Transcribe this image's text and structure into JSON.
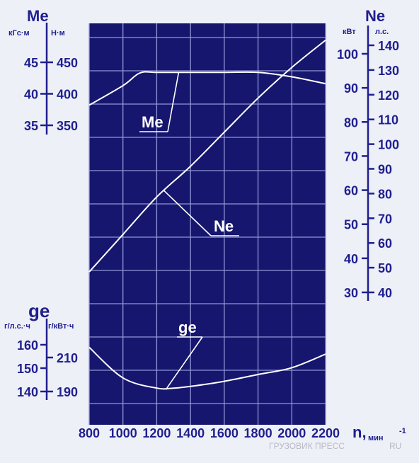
{
  "chart_data": {
    "type": "line",
    "x": {
      "label": "n,",
      "unit": "мин",
      "unit_superscript": "-1",
      "range": [
        800,
        2200
      ],
      "ticks": [
        800,
        1000,
        1200,
        1400,
        1600,
        1800,
        2000,
        2200
      ]
    },
    "axes": {
      "me": {
        "title": "Me",
        "units": [
          "кГс·м",
          "Н·м"
        ],
        "ticks_primary": [
          45,
          40,
          35
        ],
        "ticks_secondary": [
          450,
          400,
          350
        ]
      },
      "ne": {
        "title": "Ne",
        "units": [
          "кВт",
          "л.с."
        ],
        "ticks_primary": [
          100,
          90,
          80,
          70,
          60,
          50,
          40,
          30
        ],
        "ticks_secondary": [
          140,
          130,
          120,
          110,
          100,
          90,
          80,
          70,
          60,
          50,
          40
        ]
      },
      "ge": {
        "title": "ge",
        "units": [
          "г/л.с.·ч",
          "г/кВт·ч"
        ],
        "ticks_primary": [
          160,
          150,
          140
        ],
        "ticks_secondary": [
          210,
          190
        ]
      }
    },
    "series": [
      {
        "name": "Me",
        "axis": "me",
        "unit": "Н·м",
        "x": [
          800,
          1000,
          1100,
          1200,
          1400,
          1600,
          1800,
          2000,
          2200
        ],
        "values": [
          382,
          413,
          433,
          434,
          434,
          434,
          434,
          427,
          416
        ]
      },
      {
        "name": "Ne",
        "axis": "ne",
        "unit": "кВт",
        "x": [
          800,
          1000,
          1200,
          1400,
          1600,
          1800,
          2000,
          2200
        ],
        "values": [
          36,
          47,
          58,
          67,
          77,
          87,
          96,
          104
        ]
      },
      {
        "name": "ge",
        "axis": "ge",
        "unit": "г/кВт·ч",
        "x": [
          800,
          1000,
          1200,
          1300,
          1400,
          1600,
          1800,
          2000,
          2200
        ],
        "values": [
          216,
          198,
          192,
          192,
          193,
          196,
          200,
          204,
          212
        ]
      }
    ],
    "grid": true
  },
  "watermark": "ГРУЗОВИК ПРЕСС",
  "watermark_suffix": "RU",
  "colors": {
    "plot_bg": "#16166e",
    "grid": "#8f96d6",
    "curve": "#ffffff",
    "axis_ink": "#1f1f8f",
    "page_bg": "#eef0f7"
  }
}
